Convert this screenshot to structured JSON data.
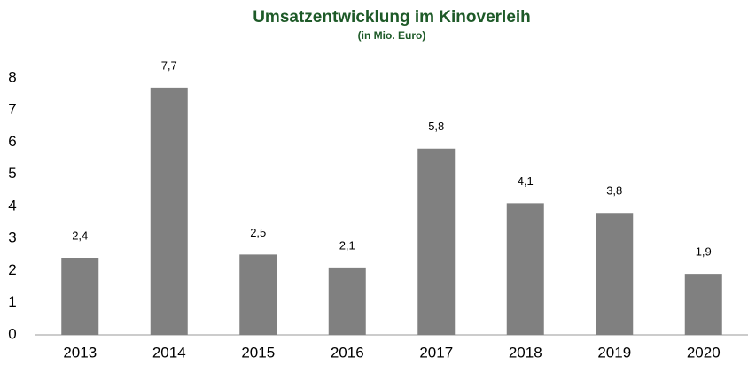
{
  "chart_data": {
    "type": "bar",
    "title": "Umsatzentwicklung im Kinoverleih",
    "subtitle": "(in Mio. Euro)",
    "categories": [
      "2013",
      "2014",
      "2015",
      "2016",
      "2017",
      "2018",
      "2019",
      "2020"
    ],
    "values": [
      2.4,
      7.7,
      2.5,
      2.1,
      5.8,
      4.1,
      3.8,
      1.9
    ],
    "value_labels": [
      "2,4",
      "7,7",
      "2,5",
      "2,1",
      "5,8",
      "4,1",
      "3,8",
      "1,9"
    ],
    "color": "#808080",
    "title_color": "#1e5a28",
    "ylim": [
      0,
      8
    ],
    "yticks": [
      0,
      1,
      2,
      3,
      4,
      5,
      6,
      7,
      8
    ],
    "grid": false
  }
}
